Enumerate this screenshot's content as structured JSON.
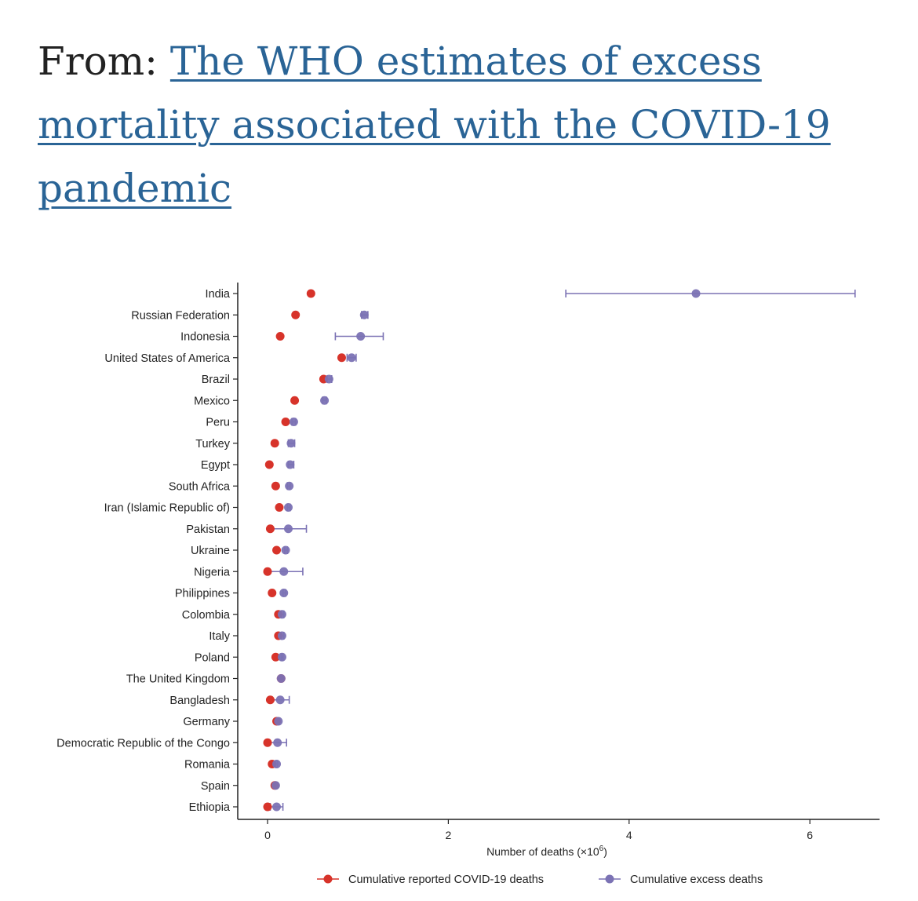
{
  "header": {
    "prefix": "From:",
    "link_text": "The WHO estimates of excess mortality associated with the COVID-19 pandemic"
  },
  "colors": {
    "reported": "#d7332a",
    "excess": "#7b72b4",
    "axis": "#222222"
  },
  "chart_data": {
    "type": "scatter",
    "title": "",
    "xlabel": "Number of deaths (×10",
    "xlabel_sup": "6",
    "xlabel_close": ")",
    "ylabel": "",
    "xlim": [
      -0.33,
      6.8
    ],
    "xticks": [
      0,
      2,
      4,
      6
    ],
    "legend": [
      {
        "name": "Cumulative reported COVID-19 deaths",
        "key": "reported"
      },
      {
        "name": "Cumulative excess deaths",
        "key": "excess"
      }
    ],
    "countries": [
      {
        "name": "India",
        "reported": 0.48,
        "excess": 4.74,
        "lo": 3.3,
        "hi": 6.5
      },
      {
        "name": "Russian Federation",
        "reported": 0.31,
        "excess": 1.07,
        "lo": 1.04,
        "hi": 1.11
      },
      {
        "name": "Indonesia",
        "reported": 0.14,
        "excess": 1.03,
        "lo": 0.75,
        "hi": 1.28
      },
      {
        "name": "United States of America",
        "reported": 0.82,
        "excess": 0.93,
        "lo": 0.88,
        "hi": 0.98
      },
      {
        "name": "Brazil",
        "reported": 0.62,
        "excess": 0.68,
        "lo": 0.66,
        "hi": 0.71
      },
      {
        "name": "Mexico",
        "reported": 0.3,
        "excess": 0.63,
        "lo": 0.61,
        "hi": 0.65
      },
      {
        "name": "Peru",
        "reported": 0.2,
        "excess": 0.29,
        "lo": 0.27,
        "hi": 0.31
      },
      {
        "name": "Turkey",
        "reported": 0.08,
        "excess": 0.26,
        "lo": 0.23,
        "hi": 0.3
      },
      {
        "name": "Egypt",
        "reported": 0.02,
        "excess": 0.25,
        "lo": 0.23,
        "hi": 0.29
      },
      {
        "name": "South Africa",
        "reported": 0.09,
        "excess": 0.24,
        "lo": 0.22,
        "hi": 0.25
      },
      {
        "name": "Iran (Islamic Republic of)",
        "reported": 0.13,
        "excess": 0.23,
        "lo": 0.22,
        "hi": 0.25
      },
      {
        "name": "Pakistan",
        "reported": 0.03,
        "excess": 0.23,
        "lo": 0.04,
        "hi": 0.43
      },
      {
        "name": "Ukraine",
        "reported": 0.1,
        "excess": 0.2,
        "lo": 0.19,
        "hi": 0.22
      },
      {
        "name": "Nigeria",
        "reported": 0.0,
        "excess": 0.18,
        "lo": 0.0,
        "hi": 0.39
      },
      {
        "name": "Philippines",
        "reported": 0.05,
        "excess": 0.18,
        "lo": 0.17,
        "hi": 0.2
      },
      {
        "name": "Colombia",
        "reported": 0.12,
        "excess": 0.16,
        "lo": 0.15,
        "hi": 0.18
      },
      {
        "name": "Italy",
        "reported": 0.12,
        "excess": 0.16,
        "lo": 0.15,
        "hi": 0.18
      },
      {
        "name": "Poland",
        "reported": 0.09,
        "excess": 0.16,
        "lo": 0.15,
        "hi": 0.17
      },
      {
        "name": "The United Kingdom",
        "reported": 0.15,
        "excess": 0.15,
        "lo": 0.14,
        "hi": 0.16
      },
      {
        "name": "Bangladesh",
        "reported": 0.03,
        "excess": 0.14,
        "lo": 0.04,
        "hi": 0.24
      },
      {
        "name": "Germany",
        "reported": 0.1,
        "excess": 0.12,
        "lo": 0.11,
        "hi": 0.13
      },
      {
        "name": "Democratic Republic of the Congo",
        "reported": 0.0,
        "excess": 0.11,
        "lo": 0.0,
        "hi": 0.21
      },
      {
        "name": "Romania",
        "reported": 0.05,
        "excess": 0.1,
        "lo": 0.09,
        "hi": 0.11
      },
      {
        "name": "Spain",
        "reported": 0.08,
        "excess": 0.09,
        "lo": 0.08,
        "hi": 0.1
      },
      {
        "name": "Ethiopia",
        "reported": 0.0,
        "excess": 0.1,
        "lo": 0.03,
        "hi": 0.17
      }
    ]
  }
}
